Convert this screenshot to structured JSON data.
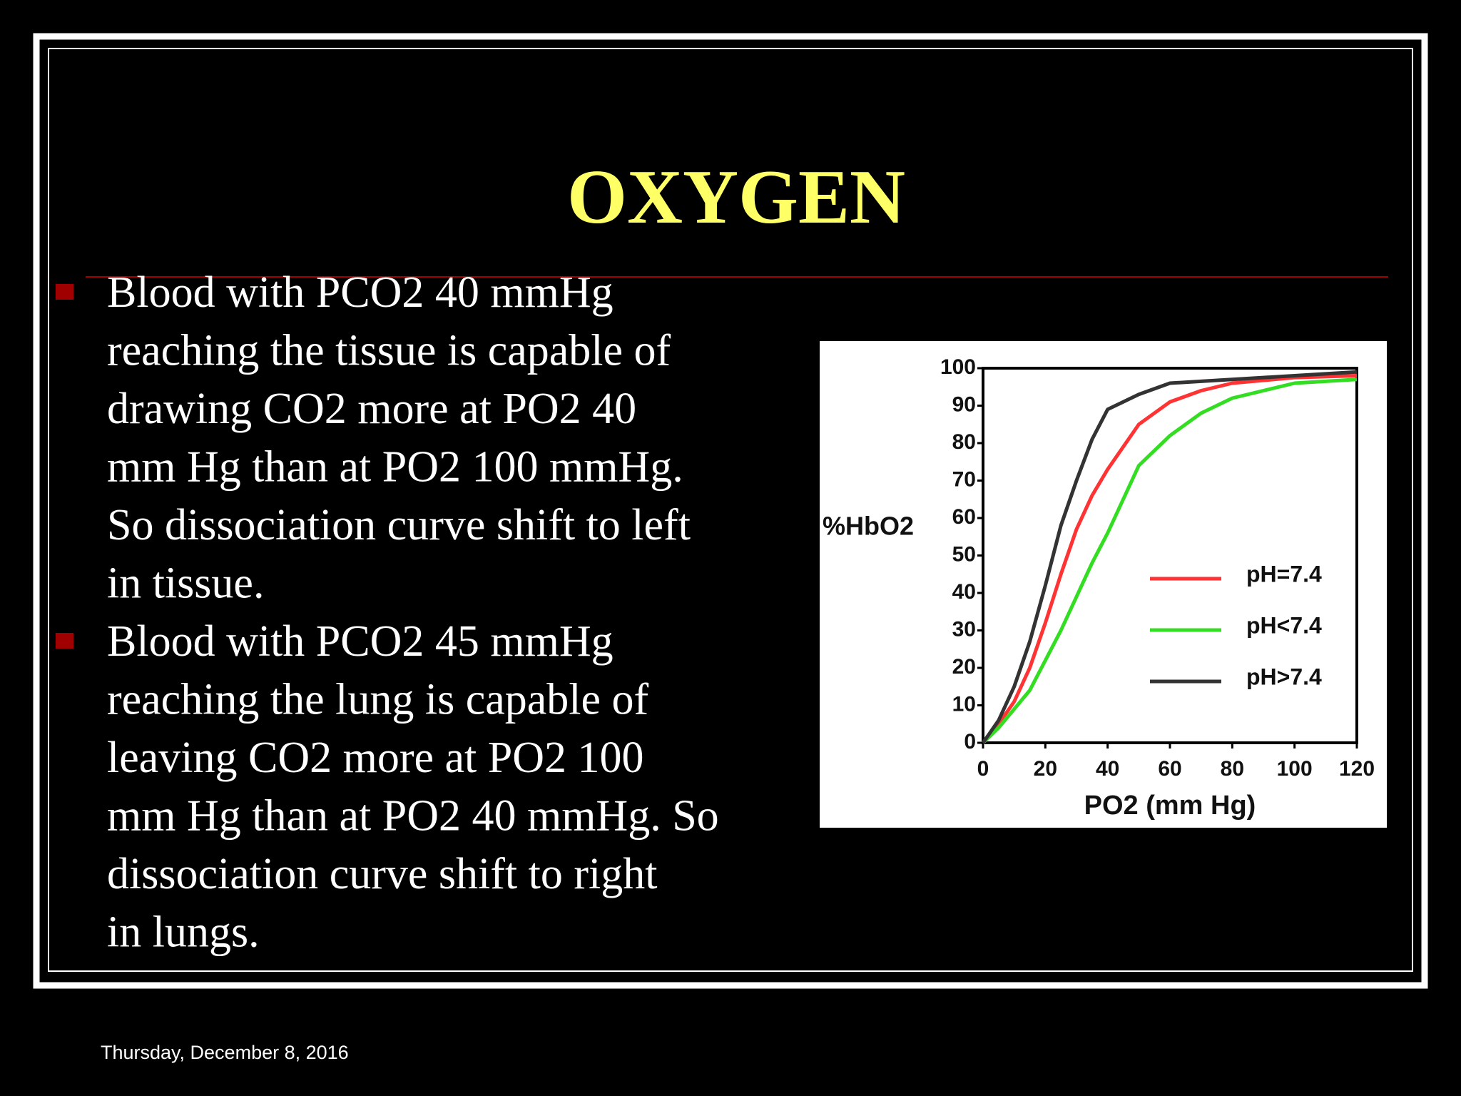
{
  "title": "OXYGEN",
  "bullets": [
    [
      "Blood with PCO2 40 mmHg",
      "reaching the tissue is capable of",
      "drawing CO2 more at PO2 40",
      "mm Hg than at PO2 100 mmHg.",
      "So dissociation curve shift to left",
      "in tissue."
    ],
    [
      "Blood with PCO2 45 mmHg",
      "reaching the lung is capable of",
      "leaving CO2 more at PO2 100",
      "mm Hg than at PO2 40 mmHg. So",
      "dissociation curve shift to right",
      "in lungs."
    ]
  ],
  "footer": "Thursday, December 8, 2016",
  "chart_data": {
    "type": "line",
    "x_label": "PO2 (mm Hg)",
    "y_label": "%HbO2",
    "x": [
      0,
      5,
      10,
      15,
      20,
      25,
      30,
      35,
      40,
      50,
      60,
      70,
      80,
      100,
      120
    ],
    "series": [
      {
        "name": "pH=7.4",
        "color": "#ff3333",
        "values": [
          0,
          5,
          11,
          20,
          32,
          45,
          57,
          66,
          73,
          85,
          91,
          94,
          96,
          97.5,
          98
        ]
      },
      {
        "name": "pH<7.4",
        "color": "#33dd22",
        "values": [
          0,
          4,
          9,
          14,
          22,
          30,
          39,
          48,
          56,
          74,
          82,
          88,
          92,
          96,
          97
        ]
      },
      {
        "name": "pH>7.4",
        "color": "#333333",
        "values": [
          0,
          6,
          15,
          27,
          42,
          58,
          70,
          81,
          89,
          93,
          96,
          96.5,
          97,
          98,
          99
        ]
      }
    ],
    "xlim": [
      0,
      120
    ],
    "ylim": [
      0,
      100
    ],
    "xticks": [
      0,
      20,
      40,
      60,
      80,
      100,
      120
    ],
    "yticks": [
      0,
      10,
      20,
      30,
      40,
      50,
      60,
      70,
      80,
      90,
      100
    ],
    "legend": "lower-right"
  }
}
